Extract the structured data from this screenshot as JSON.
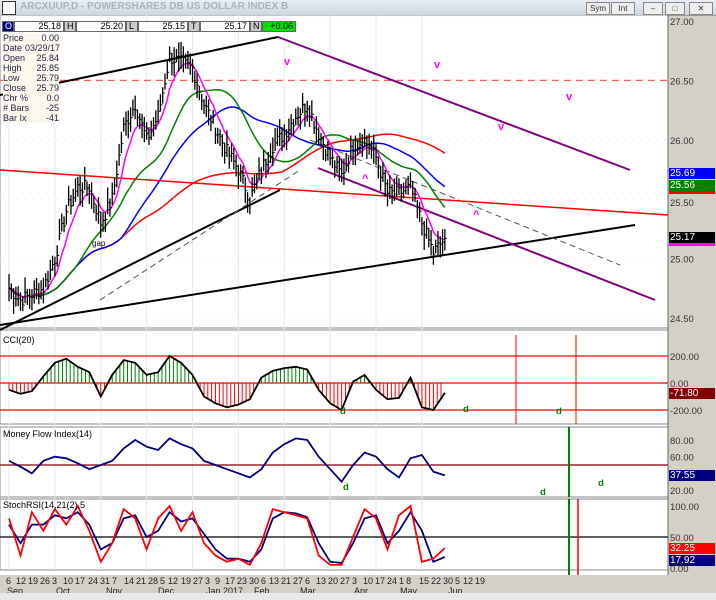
{
  "window": {
    "title": "ARCXUUP,D - POWERSHARES DB US DOLLAR INDEX B",
    "sym_btn": "Sym",
    "int_btn": "Int",
    "min": "–",
    "max": "□",
    "close": "✕"
  },
  "header": {
    "o_label": "O",
    "o": "25.18",
    "h_label": "H",
    "h": "25.20",
    "l_label": "L",
    "l": "25.15",
    "t_label": "T",
    "t": "25.17",
    "n_label": "N",
    "n": "+0.06"
  },
  "info": [
    [
      "Price",
      "0.00"
    ],
    [
      "Date",
      "03/29/17"
    ],
    [
      "Open",
      "25.84"
    ],
    [
      "High",
      "25.85"
    ],
    [
      "Low",
      "25.79"
    ],
    [
      "Close",
      "25.79"
    ],
    [
      "Chr %",
      "0.0"
    ],
    [
      "# Bars",
      "-25"
    ],
    [
      "Bar Ix",
      "-41"
    ]
  ],
  "colors": {
    "price": "#000000",
    "ema_fast": "#ff00ff",
    "ma_mid": "#008000",
    "ma_slow": "#0000ff",
    "ma_long": "#ff0000",
    "channel": "#800080",
    "cci_up": "#008000",
    "cci_down": "#ff0000",
    "mfi": "#000080",
    "stoch_k": "#ff0000",
    "stoch_d": "#000080"
  },
  "chart_data": {
    "type": "line",
    "title": "ARCXUUP,D - POWERSHARES DB US DOLLAR INDEX B",
    "x": [
      "Sep 6",
      "12",
      "19",
      "26",
      "Oct 3",
      "10",
      "17",
      "24",
      "31",
      "Nov 7",
      "14",
      "21",
      "28",
      "Dec 5",
      "12",
      "19",
      "27",
      "Jan 3",
      "9",
      "17",
      "23",
      "30",
      "Feb 6",
      "13",
      "21",
      "27",
      "Mar 6",
      "13",
      "20",
      "27",
      "Apr 3",
      "10",
      "17",
      "24",
      "May 1",
      "8",
      "15",
      "22",
      "30"
    ],
    "price_close": [
      24.75,
      24.65,
      24.7,
      24.75,
      25.0,
      25.4,
      25.6,
      25.6,
      25.3,
      25.5,
      26.1,
      26.3,
      26.0,
      26.2,
      26.7,
      26.65,
      26.6,
      26.3,
      26.1,
      25.9,
      25.75,
      25.5,
      25.75,
      25.95,
      26.05,
      26.2,
      26.3,
      26.05,
      25.85,
      25.7,
      25.95,
      26.0,
      25.85,
      25.55,
      25.55,
      25.6,
      25.3,
      25.05,
      25.17
    ],
    "price_axis": {
      "ticks": [
        "27.00",
        "26.50",
        "26.00",
        "25.50",
        "25.00",
        "24.50"
      ],
      "range": [
        24.4,
        27.05
      ],
      "resistance": 26.5
    },
    "price_tags": {
      "ma_slow": "25.69",
      "ma_mid": "25.56",
      "last": "25.17"
    },
    "cci": {
      "label": "CCI(20)",
      "ticks": [
        "200.00",
        "0.00",
        "-200.00"
      ],
      "value": "-71.80",
      "values": [
        -50,
        -80,
        -60,
        50,
        150,
        180,
        120,
        80,
        -100,
        60,
        170,
        150,
        60,
        80,
        200,
        150,
        60,
        -100,
        -150,
        -180,
        -160,
        -120,
        40,
        90,
        110,
        120,
        100,
        -50,
        -150,
        -200,
        10,
        60,
        -50,
        -120,
        -110,
        40,
        -180,
        -200,
        -71.8
      ]
    },
    "mfi": {
      "label": "Money Flow Index(14)",
      "ticks": [
        "80.00",
        "60.00",
        "20.00"
      ],
      "value": "37.55",
      "values": [
        55,
        48,
        40,
        55,
        60,
        58,
        52,
        45,
        50,
        55,
        70,
        80,
        72,
        68,
        82,
        75,
        70,
        55,
        50,
        45,
        40,
        35,
        45,
        65,
        75,
        82,
        80,
        60,
        45,
        30,
        50,
        65,
        60,
        45,
        35,
        58,
        62,
        42,
        37.55
      ]
    },
    "stoch": {
      "label": "StochRSI(14,21(2),5",
      "ticks": [
        "100.00",
        "50.00",
        "0.00"
      ],
      "k_value": "32.25",
      "d_value": "17.92",
      "k": [
        80,
        20,
        90,
        60,
        95,
        70,
        100,
        60,
        10,
        40,
        95,
        80,
        30,
        80,
        100,
        60,
        90,
        40,
        20,
        10,
        15,
        5,
        40,
        95,
        90,
        85,
        80,
        20,
        5,
        5,
        50,
        95,
        80,
        30,
        85,
        100,
        10,
        15,
        32.25
      ],
      "d": [
        70,
        40,
        70,
        70,
        85,
        80,
        90,
        70,
        30,
        40,
        80,
        85,
        50,
        60,
        90,
        75,
        80,
        55,
        30,
        15,
        15,
        10,
        30,
        80,
        90,
        88,
        82,
        40,
        10,
        8,
        40,
        80,
        85,
        40,
        60,
        90,
        60,
        10,
        17.92
      ]
    },
    "x_ticks": [
      "6",
      "12",
      "19",
      "26",
      "3",
      "10",
      "17",
      "24",
      "31",
      "7",
      "14",
      "21",
      "28",
      "5",
      "12",
      "19",
      "27",
      "3",
      "9",
      "17",
      "23",
      "30",
      "6",
      "13",
      "21",
      "27",
      "6",
      "13",
      "20",
      "27",
      "3",
      "10",
      "17",
      "24",
      "1",
      "8",
      "15",
      "22",
      "30",
      "5",
      "12",
      "19"
    ],
    "months": [
      "Sep",
      "Oct",
      "Nov",
      "Dec",
      "Jan 2017",
      "Feb",
      "Mar",
      "Apr",
      "May",
      "Jun"
    ],
    "annotations": {
      "gap": "gap",
      "v": "v",
      "up": "^",
      "d": "d"
    }
  }
}
